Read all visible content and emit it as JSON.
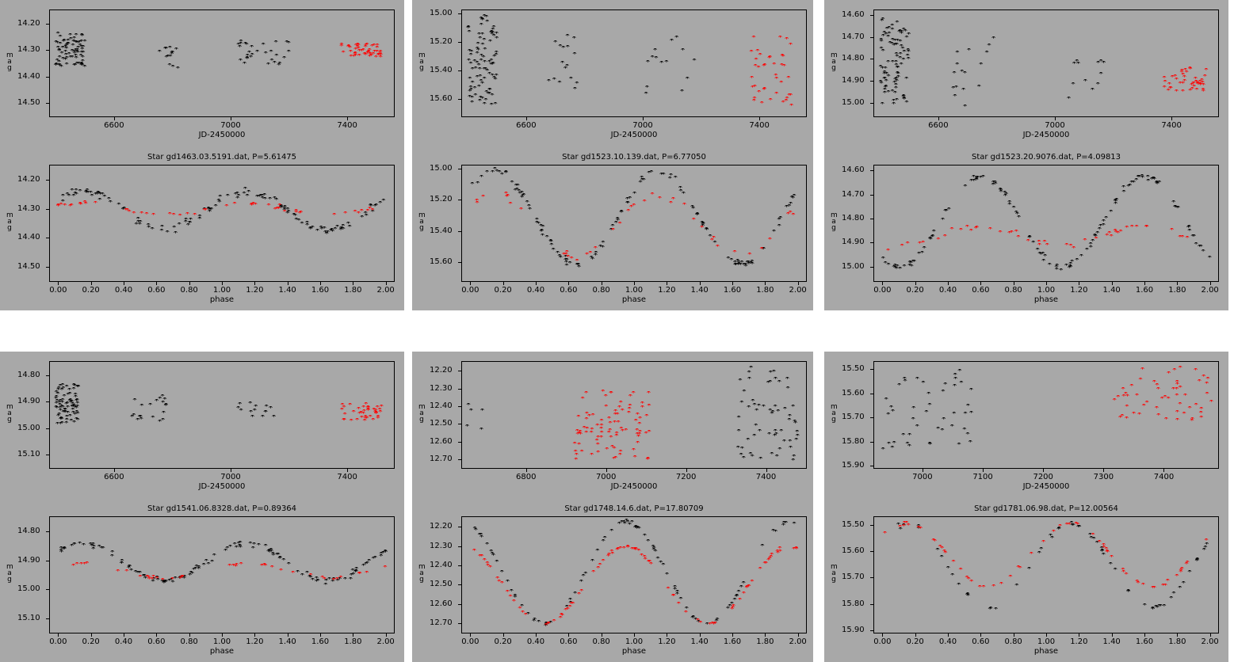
{
  "ylabel": "m\na\ng",
  "colors": {
    "background": "#a8a8a8",
    "series_old": "#000000",
    "series_new": "#ff0000"
  },
  "chart_data": [
    {
      "star": "gd1463.03.5191.dat",
      "title": "Star gd1463.03.5191.dat, P=5.61475",
      "time": {
        "type": "scatter",
        "xlabel": "JD-2450000",
        "ylabel": "mag",
        "xlim": [
          6380,
          7560
        ],
        "ylim": [
          14.15,
          14.55
        ],
        "invert_y": true,
        "xticks": [
          6600,
          7000,
          7400
        ],
        "xtick_labels": [
          "6600",
          "7000",
          "7400"
        ],
        "yticks": [
          14.2,
          14.3,
          14.4,
          14.5
        ],
        "ytick_labels": [
          "14.20",
          "14.30",
          "14.40",
          "14.50"
        ],
        "series": [
          {
            "name": "black",
            "clusters": [
              [
                6400,
                6500,
                14.24,
                14.37,
                80
              ],
              [
                6740,
                6820,
                14.28,
                14.37,
                14
              ],
              [
                7020,
                7200,
                14.27,
                14.36,
                30
              ]
            ]
          },
          {
            "name": "red",
            "clusters": [
              [
                7380,
                7520,
                14.28,
                14.33,
                50
              ]
            ]
          }
        ]
      },
      "phase": {
        "type": "scatter",
        "xlabel": "phase",
        "ylabel": "mag",
        "xlim": [
          -0.05,
          2.05
        ],
        "ylim": [
          14.15,
          14.55
        ],
        "invert_y": true,
        "xticks": [
          0,
          0.2,
          0.4,
          0.6,
          0.8,
          1.0,
          1.2,
          1.4,
          1.6,
          1.8,
          2.0
        ],
        "xtick_labels": [
          "0.00",
          "0.20",
          "0.40",
          "0.60",
          "0.80",
          "1.00",
          "1.20",
          "1.40",
          "1.60",
          "1.80",
          "2.00"
        ],
        "yticks": [
          14.2,
          14.3,
          14.4,
          14.5
        ],
        "ytick_labels": [
          "14.20",
          "14.30",
          "14.40",
          "14.50"
        ],
        "series": [
          {
            "name": "black",
            "mean": 14.31,
            "amp": 0.065,
            "phase0": 0.15,
            "noise": 0.02,
            "n": 130
          },
          {
            "name": "red",
            "mean": 14.305,
            "amp": 0.02,
            "phase0": 0.15,
            "noise": 0.01,
            "n": 50
          }
        ]
      }
    },
    {
      "star": "gd1523.10.139.dat",
      "title": "Star gd1523.10.139.dat, P=6.77050",
      "time": {
        "type": "scatter",
        "xlabel": "JD-2450000",
        "ylabel": "mag",
        "xlim": [
          6380,
          7560
        ],
        "ylim": [
          14.98,
          15.72
        ],
        "invert_y": true,
        "xticks": [
          6600,
          7000,
          7400
        ],
        "xtick_labels": [
          "6600",
          "7000",
          "7400"
        ],
        "yticks": [
          15.0,
          15.2,
          15.4,
          15.6
        ],
        "ytick_labels": [
          "15.00",
          "15.20",
          "15.40",
          "15.60"
        ],
        "series": [
          {
            "name": "black",
            "clusters": [
              [
                6400,
                6500,
                15.02,
                15.65,
                90
              ],
              [
                6650,
                6780,
                15.12,
                15.55,
                16
              ],
              [
                7010,
                7190,
                15.17,
                15.58,
                14
              ]
            ]
          },
          {
            "name": "red",
            "clusters": [
              [
                7370,
                7510,
                15.17,
                15.65,
                40
              ]
            ]
          }
        ]
      },
      "phase": {
        "type": "scatter",
        "xlabel": "phase",
        "ylabel": "mag",
        "xlim": [
          -0.05,
          2.05
        ],
        "ylim": [
          14.98,
          15.72
        ],
        "invert_y": true,
        "xticks": [
          0,
          0.2,
          0.4,
          0.6,
          0.8,
          1.0,
          1.2,
          1.4,
          1.6,
          1.8,
          2.0
        ],
        "xtick_labels": [
          "0.00",
          "0.20",
          "0.40",
          "0.60",
          "0.80",
          "1.00",
          "1.20",
          "1.40",
          "1.60",
          "1.80",
          "2.00"
        ],
        "yticks": [
          15.0,
          15.2,
          15.4,
          15.6
        ],
        "ytick_labels": [
          "15.00",
          "15.20",
          "15.40",
          "15.60"
        ],
        "series": [
          {
            "name": "black",
            "mean": 15.32,
            "amp": 0.3,
            "phase0": 0.15,
            "noise": 0.04,
            "n": 130
          },
          {
            "name": "red",
            "mean": 15.37,
            "amp": 0.2,
            "phase0": 0.15,
            "noise": 0.04,
            "n": 40
          }
        ]
      }
    },
    {
      "star": "gd1523.20.9076.dat",
      "title": "Star gd1523.20.9076.dat, P=4.09813",
      "time": {
        "type": "scatter",
        "xlabel": "JD-2450000",
        "ylabel": "mag",
        "xlim": [
          6380,
          7560
        ],
        "ylim": [
          14.58,
          15.06
        ],
        "invert_y": true,
        "xticks": [
          6600,
          7000,
          7400
        ],
        "xtick_labels": [
          "6600",
          "7000",
          "7400"
        ],
        "yticks": [
          14.6,
          14.7,
          14.8,
          14.9,
          15.0
        ],
        "ytick_labels": [
          "14.60",
          "14.70",
          "14.80",
          "14.90",
          "15.00"
        ],
        "series": [
          {
            "name": "black",
            "clusters": [
              [
                6400,
                6500,
                14.62,
                15.01,
                90
              ],
              [
                6650,
                6790,
                14.63,
                15.02,
                16
              ],
              [
                7020,
                7180,
                14.77,
                15.01,
                12
              ]
            ]
          },
          {
            "name": "red",
            "clusters": [
              [
                7370,
                7520,
                14.84,
                14.95,
                45
              ]
            ]
          }
        ]
      },
      "phase": {
        "type": "scatter",
        "xlabel": "phase",
        "ylabel": "mag",
        "xlim": [
          -0.05,
          2.05
        ],
        "ylim": [
          14.58,
          15.06
        ],
        "invert_y": true,
        "xticks": [
          0,
          0.2,
          0.4,
          0.6,
          0.8,
          1.0,
          1.2,
          1.4,
          1.6,
          1.8,
          2.0
        ],
        "xtick_labels": [
          "0.00",
          "0.20",
          "0.40",
          "0.60",
          "0.80",
          "1.00",
          "1.20",
          "1.40",
          "1.60",
          "1.80",
          "2.00"
        ],
        "yticks": [
          14.6,
          14.7,
          14.8,
          14.9,
          15.0
        ],
        "ytick_labels": [
          "14.60",
          "14.70",
          "14.80",
          "14.90",
          "15.00"
        ],
        "series": [
          {
            "name": "black",
            "mean": 14.82,
            "amp": 0.19,
            "phase0": 0.6,
            "noise": 0.02,
            "n": 130
          },
          {
            "name": "red",
            "mean": 14.88,
            "amp": 0.04,
            "phase0": 0.6,
            "noise": 0.02,
            "n": 45
          }
        ]
      }
    },
    {
      "star": "gd1541.06.8328.dat",
      "title": "Star gd1541.06.8328.dat, P=0.89364",
      "time": {
        "type": "scatter",
        "xlabel": "JD-2450000",
        "ylabel": "mag",
        "xlim": [
          6380,
          7560
        ],
        "ylim": [
          14.75,
          15.15
        ],
        "invert_y": true,
        "xticks": [
          6600,
          7000,
          7400
        ],
        "xtick_labels": [
          "6600",
          "7000",
          "7400"
        ],
        "yticks": [
          14.8,
          14.9,
          15.0,
          15.1
        ],
        "ytick_labels": [
          "14.80",
          "14.90",
          "15.00",
          "15.10"
        ],
        "series": [
          {
            "name": "black",
            "clusters": [
              [
                6400,
                6480,
                14.84,
                14.99,
                80
              ],
              [
                6660,
                6780,
                14.88,
                14.98,
                20
              ],
              [
                7020,
                7190,
                14.9,
                14.96,
                14
              ]
            ]
          },
          {
            "name": "red",
            "clusters": [
              [
                7380,
                7520,
                14.91,
                14.98,
                40
              ]
            ]
          }
        ]
      },
      "phase": {
        "type": "scatter",
        "xlabel": "phase",
        "ylabel": "mag",
        "xlim": [
          -0.05,
          2.05
        ],
        "ylim": [
          14.75,
          15.15
        ],
        "invert_y": true,
        "xticks": [
          0,
          0.2,
          0.4,
          0.6,
          0.8,
          1.0,
          1.2,
          1.4,
          1.6,
          1.8,
          2.0
        ],
        "xtick_labels": [
          "0.00",
          "0.20",
          "0.40",
          "0.60",
          "0.80",
          "1.00",
          "1.20",
          "1.40",
          "1.60",
          "1.80",
          "2.00"
        ],
        "yticks": [
          14.8,
          14.9,
          15.0,
          15.1
        ],
        "ytick_labels": [
          "14.80",
          "14.90",
          "15.00",
          "15.10"
        ],
        "series": [
          {
            "name": "black",
            "mean": 14.91,
            "amp": 0.065,
            "phase0": 0.15,
            "noise": 0.015,
            "n": 130
          },
          {
            "name": "red",
            "mean": 14.94,
            "amp": 0.025,
            "phase0": 0.15,
            "noise": 0.01,
            "n": 40
          }
        ]
      }
    },
    {
      "star": "gd1748.14.6.dat",
      "title": "Star gd1748.14.6.dat, P=17.80709",
      "time": {
        "type": "scatter",
        "xlabel": "JD-2450000",
        "ylabel": "mag",
        "xlim": [
          6640,
          7500
        ],
        "ylim": [
          12.15,
          12.75
        ],
        "invert_y": true,
        "xticks": [
          6800,
          7000,
          7200,
          7400
        ],
        "xtick_labels": [
          "6800",
          "7000",
          "7200",
          "7400"
        ],
        "yticks": [
          12.2,
          12.3,
          12.4,
          12.5,
          12.6,
          12.7
        ],
        "ytick_labels": [
          "12.20",
          "12.30",
          "12.40",
          "12.50",
          "12.60",
          "12.70"
        ],
        "series": [
          {
            "name": "black",
            "clusters": [
              [
                6650,
                6730,
                12.35,
                12.69,
                5
              ],
              [
                7330,
                7490,
                12.18,
                12.72,
                60
              ]
            ]
          },
          {
            "name": "red",
            "clusters": [
              [
                6920,
                7110,
                12.31,
                12.71,
                90
              ]
            ]
          }
        ]
      },
      "phase": {
        "type": "scatter",
        "xlabel": "phase",
        "ylabel": "mag",
        "xlim": [
          -0.05,
          2.05
        ],
        "ylim": [
          12.15,
          12.75
        ],
        "invert_y": true,
        "xticks": [
          0,
          0.2,
          0.4,
          0.6,
          0.8,
          1.0,
          1.2,
          1.4,
          1.6,
          1.8,
          2.0
        ],
        "xtick_labels": [
          "0.00",
          "0.20",
          "0.40",
          "0.60",
          "0.80",
          "1.00",
          "1.20",
          "1.40",
          "1.60",
          "1.80",
          "2.00"
        ],
        "yticks": [
          12.2,
          12.3,
          12.4,
          12.5,
          12.6,
          12.7
        ],
        "ytick_labels": [
          "12.20",
          "12.30",
          "12.40",
          "12.50",
          "12.60",
          "12.70"
        ],
        "series": [
          {
            "name": "black",
            "mean": 12.445,
            "amp": 0.265,
            "phase0": 0.95,
            "noise": 0.015,
            "n": 90
          },
          {
            "name": "red",
            "mean": 12.51,
            "amp": 0.2,
            "phase0": 0.95,
            "noise": 0.012,
            "n": 90
          }
        ]
      }
    },
    {
      "star": "gd1781.06.98.dat",
      "title": "Star gd1781.06.98.dat, P=12.00564",
      "time": {
        "type": "scatter",
        "xlabel": "JD-2450000",
        "ylabel": "mag",
        "xlim": [
          6920,
          7490
        ],
        "ylim": [
          15.47,
          15.91
        ],
        "invert_y": true,
        "xticks": [
          7000,
          7100,
          7200,
          7300,
          7400
        ],
        "xtick_labels": [
          "7000",
          "7100",
          "7200",
          "7300",
          "7400"
        ],
        "yticks": [
          15.5,
          15.6,
          15.7,
          15.8,
          15.9
        ],
        "ytick_labels": [
          "15.50",
          "15.60",
          "15.70",
          "15.80",
          "15.90"
        ],
        "series": [
          {
            "name": "black",
            "clusters": [
              [
                6930,
                7090,
                15.5,
                15.84,
                45
              ]
            ]
          },
          {
            "name": "red",
            "clusters": [
              [
                7310,
                7480,
                15.49,
                15.72,
                55
              ]
            ]
          }
        ]
      },
      "phase": {
        "type": "scatter",
        "xlabel": "phase",
        "ylabel": "mag",
        "xlim": [
          -0.05,
          2.05
        ],
        "ylim": [
          15.47,
          15.91
        ],
        "invert_y": true,
        "xticks": [
          0,
          0.2,
          0.4,
          0.6,
          0.8,
          1.0,
          1.2,
          1.4,
          1.6,
          1.8,
          2.0
        ],
        "xtick_labels": [
          "0.00",
          "0.20",
          "0.40",
          "0.60",
          "0.80",
          "1.00",
          "1.20",
          "1.40",
          "1.60",
          "1.80",
          "2.00"
        ],
        "yticks": [
          15.5,
          15.6,
          15.7,
          15.8,
          15.9
        ],
        "ytick_labels": [
          "15.50",
          "15.60",
          "15.70",
          "15.80",
          "15.90"
        ],
        "series": [
          {
            "name": "black",
            "mean": 15.66,
            "amp": 0.16,
            "phase0": 0.15,
            "noise": 0.015,
            "n": 60
          },
          {
            "name": "red",
            "mean": 15.62,
            "amp": 0.12,
            "phase0": 0.15,
            "noise": 0.012,
            "n": 60
          }
        ]
      }
    }
  ]
}
